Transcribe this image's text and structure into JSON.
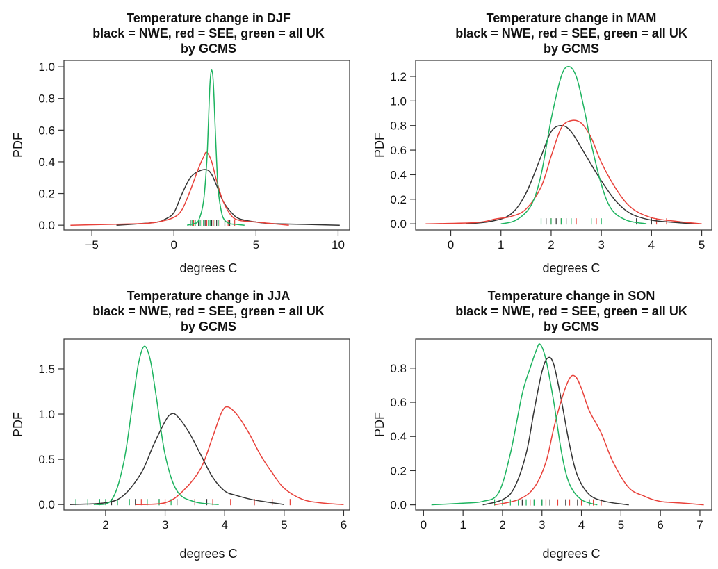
{
  "chart_data": [
    {
      "type": "line",
      "title": "Temperature change in DJF",
      "subtitle": "black = NWE, red = SEE, green = all UK",
      "subtitle2": "by GCMS",
      "xlabel": "degrees C",
      "ylabel": "PDF",
      "xlim": [
        -6.7,
        10.7
      ],
      "ylim": [
        -0.03,
        1.04
      ],
      "xticks": [
        -5,
        0,
        5,
        10
      ],
      "yticks": [
        0.0,
        0.2,
        0.4,
        0.6,
        0.8,
        1.0
      ],
      "xtick_labels": [
        "−5",
        "0",
        "5",
        "10"
      ],
      "ytick_labels": [
        "0.0",
        "0.2",
        "0.4",
        "0.6",
        "0.8",
        "1.0"
      ],
      "series": [
        {
          "color": "#333333",
          "x": [
            -3.5,
            -2,
            -1,
            -0.5,
            0,
            0.5,
            1,
            1.5,
            2,
            2.3,
            2.6,
            3,
            3.5,
            4,
            5,
            6,
            8,
            10.1
          ],
          "y": [
            0,
            0.01,
            0.02,
            0.04,
            0.08,
            0.2,
            0.3,
            0.34,
            0.35,
            0.32,
            0.25,
            0.15,
            0.08,
            0.04,
            0.02,
            0.01,
            0.005,
            0
          ]
        },
        {
          "color": "#e8413a",
          "x": [
            -6.3,
            -4,
            -2,
            -1,
            0,
            0.5,
            1,
            1.5,
            1.8,
            2,
            2.3,
            2.6,
            3,
            3.5,
            4,
            5,
            6,
            7
          ],
          "y": [
            0,
            0.005,
            0.01,
            0.02,
            0.05,
            0.1,
            0.22,
            0.36,
            0.43,
            0.46,
            0.4,
            0.28,
            0.15,
            0.06,
            0.03,
            0.02,
            0.01,
            0
          ]
        },
        {
          "color": "#1db35f",
          "x": [
            0.8,
            1.2,
            1.5,
            1.8,
            2,
            2.1,
            2.2,
            2.3,
            2.4,
            2.5,
            2.6,
            2.7,
            2.9,
            3.1,
            3.4,
            3.8,
            4.3
          ],
          "y": [
            0,
            0.01,
            0.03,
            0.15,
            0.4,
            0.65,
            0.9,
            0.98,
            0.9,
            0.65,
            0.4,
            0.22,
            0.08,
            0.03,
            0.01,
            0.005,
            0
          ]
        }
      ],
      "rugs": [
        {
          "color": "#333333",
          "x": [
            1.0,
            1.5,
            1.9,
            2.3,
            2.6,
            3.1,
            3.4
          ]
        },
        {
          "color": "#e8413a",
          "x": [
            1.2,
            1.7,
            2.0,
            2.4,
            2.8,
            3.3,
            3.7
          ]
        },
        {
          "color": "#1db35f",
          "x": [
            1.1,
            1.3,
            1.6,
            1.8,
            2.1,
            2.2,
            2.5,
            2.7
          ]
        }
      ]
    },
    {
      "type": "line",
      "title": "Temperature change in MAM",
      "subtitle": "black = NWE, red = SEE, green = all UK",
      "subtitle2": "by GCMS",
      "xlabel": "degrees C",
      "ylabel": "PDF",
      "xlim": [
        -0.7,
        5.2
      ],
      "ylim": [
        -0.05,
        1.33
      ],
      "xticks": [
        0,
        1,
        2,
        3,
        4,
        5
      ],
      "yticks": [
        0.0,
        0.2,
        0.4,
        0.6,
        0.8,
        1.0,
        1.2
      ],
      "xtick_labels": [
        "0",
        "1",
        "2",
        "3",
        "4",
        "5"
      ],
      "ytick_labels": [
        "0.0",
        "0.2",
        "0.4",
        "0.6",
        "0.8",
        "1.0",
        "1.2"
      ],
      "series": [
        {
          "color": "#333333",
          "x": [
            0.3,
            0.8,
            1.2,
            1.5,
            1.8,
            2.0,
            2.2,
            2.4,
            2.7,
            3.0,
            3.3,
            3.6,
            4.0,
            4.5,
            4.9
          ],
          "y": [
            0,
            0.02,
            0.08,
            0.25,
            0.55,
            0.75,
            0.8,
            0.75,
            0.55,
            0.35,
            0.18,
            0.08,
            0.03,
            0.01,
            0
          ]
        },
        {
          "color": "#e8413a",
          "x": [
            -0.5,
            0.5,
            0.9,
            1.2,
            1.5,
            1.8,
            2.0,
            2.2,
            2.4,
            2.6,
            2.8,
            3.0,
            3.3,
            3.6,
            4.0,
            4.5,
            5.0
          ],
          "y": [
            0,
            0.01,
            0.04,
            0.06,
            0.12,
            0.3,
            0.55,
            0.78,
            0.84,
            0.82,
            0.7,
            0.5,
            0.28,
            0.13,
            0.05,
            0.02,
            0
          ]
        },
        {
          "color": "#1db35f",
          "x": [
            1.0,
            1.3,
            1.6,
            1.8,
            2.0,
            2.2,
            2.35,
            2.5,
            2.65,
            2.8,
            3.0,
            3.2,
            3.5,
            3.9
          ],
          "y": [
            0,
            0.03,
            0.15,
            0.4,
            0.85,
            1.2,
            1.28,
            1.2,
            0.95,
            0.65,
            0.32,
            0.12,
            0.03,
            0
          ]
        }
      ],
      "rugs": [
        {
          "color": "#333333",
          "x": [
            1.9,
            2.1,
            2.3,
            3.7,
            4.0
          ]
        },
        {
          "color": "#e8413a",
          "x": [
            2.0,
            2.2,
            2.5,
            2.9,
            4.1,
            4.3
          ]
        },
        {
          "color": "#1db35f",
          "x": [
            1.8,
            2.0,
            2.2,
            2.4,
            2.8,
            3.0
          ]
        }
      ]
    },
    {
      "type": "line",
      "title": "Temperature change in JJA",
      "subtitle": "black = NWE, red = SEE, green = all UK",
      "subtitle2": "by GCMS",
      "xlabel": "degrees C",
      "ylabel": "PDF",
      "xlim": [
        1.3,
        6.1
      ],
      "ylim": [
        -0.06,
        1.83
      ],
      "xticks": [
        2,
        3,
        4,
        5,
        6
      ],
      "yticks": [
        0.0,
        0.5,
        1.0,
        1.5
      ],
      "xtick_labels": [
        "2",
        "3",
        "4",
        "5",
        "6"
      ],
      "ytick_labels": [
        "0.0",
        "0.5",
        "1.0",
        "1.5"
      ],
      "series": [
        {
          "color": "#333333",
          "x": [
            1.4,
            2.0,
            2.3,
            2.6,
            2.8,
            3.0,
            3.1,
            3.2,
            3.4,
            3.6,
            3.8,
            4.0,
            4.2,
            4.5,
            5.0
          ],
          "y": [
            0,
            0.02,
            0.1,
            0.35,
            0.65,
            0.92,
            1.0,
            0.98,
            0.8,
            0.55,
            0.3,
            0.15,
            0.1,
            0.05,
            0
          ]
        },
        {
          "color": "#e8413a",
          "x": [
            2.5,
            3.0,
            3.3,
            3.6,
            3.8,
            3.95,
            4.05,
            4.2,
            4.4,
            4.6,
            4.8,
            5.0,
            5.3,
            5.6,
            6.0
          ],
          "y": [
            0,
            0.02,
            0.15,
            0.4,
            0.75,
            1.02,
            1.08,
            1.0,
            0.8,
            0.55,
            0.35,
            0.18,
            0.06,
            0.02,
            0
          ]
        },
        {
          "color": "#1db35f",
          "x": [
            1.8,
            2.1,
            2.3,
            2.45,
            2.55,
            2.65,
            2.75,
            2.85,
            3.0,
            3.2,
            3.5,
            3.9
          ],
          "y": [
            0,
            0.05,
            0.45,
            1.1,
            1.55,
            1.75,
            1.6,
            1.2,
            0.55,
            0.15,
            0.03,
            0
          ]
        }
      ],
      "rugs": [
        {
          "color": "#333333",
          "x": [
            2.1,
            2.5,
            2.9,
            3.2,
            3.5,
            3.7,
            4.5
          ]
        },
        {
          "color": "#e8413a",
          "x": [
            2.6,
            3.0,
            3.5,
            3.8,
            4.1,
            4.5,
            4.8,
            5.1
          ]
        },
        {
          "color": "#1db35f",
          "x": [
            1.5,
            1.7,
            1.9,
            2.0,
            2.2,
            2.4,
            2.7,
            2.9,
            3.1
          ]
        }
      ]
    },
    {
      "type": "line",
      "title": "Temperature change in SON",
      "subtitle": "black = NWE, red = SEE, green = all UK",
      "subtitle2": "by GCMS",
      "xlabel": "degrees C",
      "ylabel": "PDF",
      "xlim": [
        -0.2,
        7.3
      ],
      "ylim": [
        -0.03,
        0.97
      ],
      "xticks": [
        0,
        1,
        2,
        3,
        4,
        5,
        6,
        7
      ],
      "yticks": [
        0.0,
        0.2,
        0.4,
        0.6,
        0.8
      ],
      "xtick_labels": [
        "0",
        "1",
        "2",
        "3",
        "4",
        "5",
        "6",
        "7"
      ],
      "ytick_labels": [
        "0.0",
        "0.2",
        "0.4",
        "0.6",
        "0.8"
      ],
      "series": [
        {
          "color": "#333333",
          "x": [
            1.5,
            2.0,
            2.3,
            2.6,
            2.8,
            3.0,
            3.15,
            3.3,
            3.5,
            3.7,
            3.9,
            4.2,
            4.6,
            5.2
          ],
          "y": [
            0,
            0.03,
            0.1,
            0.3,
            0.55,
            0.78,
            0.86,
            0.82,
            0.6,
            0.35,
            0.17,
            0.06,
            0.02,
            0
          ]
        },
        {
          "color": "#e8413a",
          "x": [
            1.8,
            2.4,
            2.8,
            3.1,
            3.3,
            3.5,
            3.7,
            3.85,
            4.0,
            4.2,
            4.5,
            4.8,
            5.2,
            5.6,
            6.0,
            6.6,
            7.1
          ],
          "y": [
            0,
            0.03,
            0.1,
            0.25,
            0.45,
            0.62,
            0.74,
            0.75,
            0.68,
            0.55,
            0.42,
            0.25,
            0.1,
            0.05,
            0.02,
            0.01,
            0
          ]
        },
        {
          "color": "#1db35f",
          "x": [
            0.2,
            1.0,
            1.5,
            1.9,
            2.2,
            2.5,
            2.7,
            2.85,
            2.95,
            3.1,
            3.3,
            3.5,
            3.7,
            4.0,
            4.4
          ],
          "y": [
            0,
            0.01,
            0.02,
            0.07,
            0.3,
            0.65,
            0.8,
            0.9,
            0.94,
            0.85,
            0.6,
            0.3,
            0.12,
            0.03,
            0
          ]
        }
      ],
      "rugs": [
        {
          "color": "#333333",
          "x": [
            2.5,
            2.8,
            3.0,
            3.2,
            3.6,
            3.9,
            4.2
          ]
        },
        {
          "color": "#e8413a",
          "x": [
            2.7,
            3.1,
            3.4,
            3.7,
            4.0,
            4.3,
            4.5
          ]
        },
        {
          "color": "#1db35f",
          "x": [
            1.8,
            2.0,
            2.2,
            2.4,
            2.6,
            2.8,
            3.0
          ]
        }
      ]
    }
  ]
}
